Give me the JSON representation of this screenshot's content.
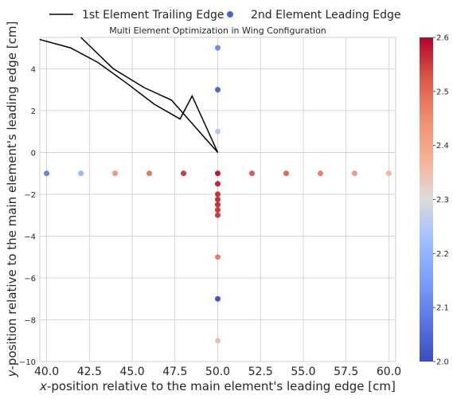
{
  "chart_data": {
    "type": "scatter",
    "title": "Multi Element Optimization in Wing Configuration",
    "xlabel_italic": "x",
    "xlabel_rest": "-position relative to the main element's leading edge [cm]",
    "ylabel_italic": "y",
    "ylabel_rest": "-position relative to the main element's leading edge [cm]",
    "xlim": [
      39.6,
      60.4
    ],
    "ylim": [
      -10,
      5.5
    ],
    "x_ticks": [
      40.0,
      42.5,
      45.0,
      47.5,
      50.0,
      52.5,
      55.0,
      57.5,
      60.0
    ],
    "x_tick_labels": [
      "40.0",
      "42.5",
      "45.0",
      "47.5",
      "50.0",
      "52.5",
      "55.0",
      "57.5",
      "60.0"
    ],
    "y_ticks": [
      -10,
      -8,
      -6,
      -4,
      -2,
      0,
      2,
      4
    ],
    "y_tick_labels": [
      "−10",
      "−8",
      "−6",
      "−4",
      "−2",
      "0",
      "2",
      "4"
    ],
    "grid": true,
    "legend_placement": "top-center-outside",
    "legend": [
      {
        "label": "1st Element Trailing Edge",
        "kind": "line"
      },
      {
        "label": "2nd Element Leading Edge",
        "kind": "marker"
      }
    ],
    "colorbar": {
      "colormap": "coolwarm",
      "range": [
        2.0,
        2.6
      ],
      "ticks": [
        2.0,
        2.1,
        2.2,
        2.3,
        2.4,
        2.5,
        2.6
      ],
      "tick_labels": [
        "2.0",
        "2.1",
        "2.2",
        "2.3",
        "2.4",
        "2.5",
        "2.6"
      ]
    },
    "trailing_edge_lines": [
      {
        "x": [
          39.6,
          41.4,
          43.0,
          44.7,
          46.3,
          47.8,
          48.5,
          50.0
        ],
        "y": [
          5.4,
          5.0,
          4.3,
          3.3,
          2.3,
          1.6,
          2.7,
          0.0
        ]
      },
      {
        "x": [
          42.0,
          43.9,
          45.7,
          47.3,
          50.0
        ],
        "y": [
          5.5,
          4.0,
          3.1,
          2.5,
          0.0
        ]
      }
    ],
    "points": [
      {
        "x": 40,
        "y": -1,
        "c": 2.1
      },
      {
        "x": 42,
        "y": -1,
        "c": 2.22
      },
      {
        "x": 44,
        "y": -1,
        "c": 2.42
      },
      {
        "x": 46,
        "y": -1,
        "c": 2.48
      },
      {
        "x": 48,
        "y": -1,
        "c": 2.55
      },
      {
        "x": 50,
        "y": -1,
        "c": 2.58
      },
      {
        "x": 52,
        "y": -1,
        "c": 2.52
      },
      {
        "x": 54,
        "y": -1,
        "c": 2.5
      },
      {
        "x": 56,
        "y": -1,
        "c": 2.47
      },
      {
        "x": 58,
        "y": -1,
        "c": 2.42
      },
      {
        "x": 60,
        "y": -1,
        "c": 2.37
      },
      {
        "x": 50,
        "y": 5,
        "c": 2.12
      },
      {
        "x": 50,
        "y": 3,
        "c": 2.05
      },
      {
        "x": 50,
        "y": 1,
        "c": 2.25
      },
      {
        "x": 50,
        "y": -1.5,
        "c": 2.57
      },
      {
        "x": 50,
        "y": -2.0,
        "c": 2.56
      },
      {
        "x": 50,
        "y": -2.25,
        "c": 2.56
      },
      {
        "x": 50,
        "y": -2.5,
        "c": 2.56
      },
      {
        "x": 50,
        "y": -2.75,
        "c": 2.55
      },
      {
        "x": 50,
        "y": -3.0,
        "c": 2.55
      },
      {
        "x": 50,
        "y": -5,
        "c": 2.47
      },
      {
        "x": 50,
        "y": -7,
        "c": 2.02
      },
      {
        "x": 50,
        "y": -9,
        "c": 2.35
      }
    ]
  }
}
